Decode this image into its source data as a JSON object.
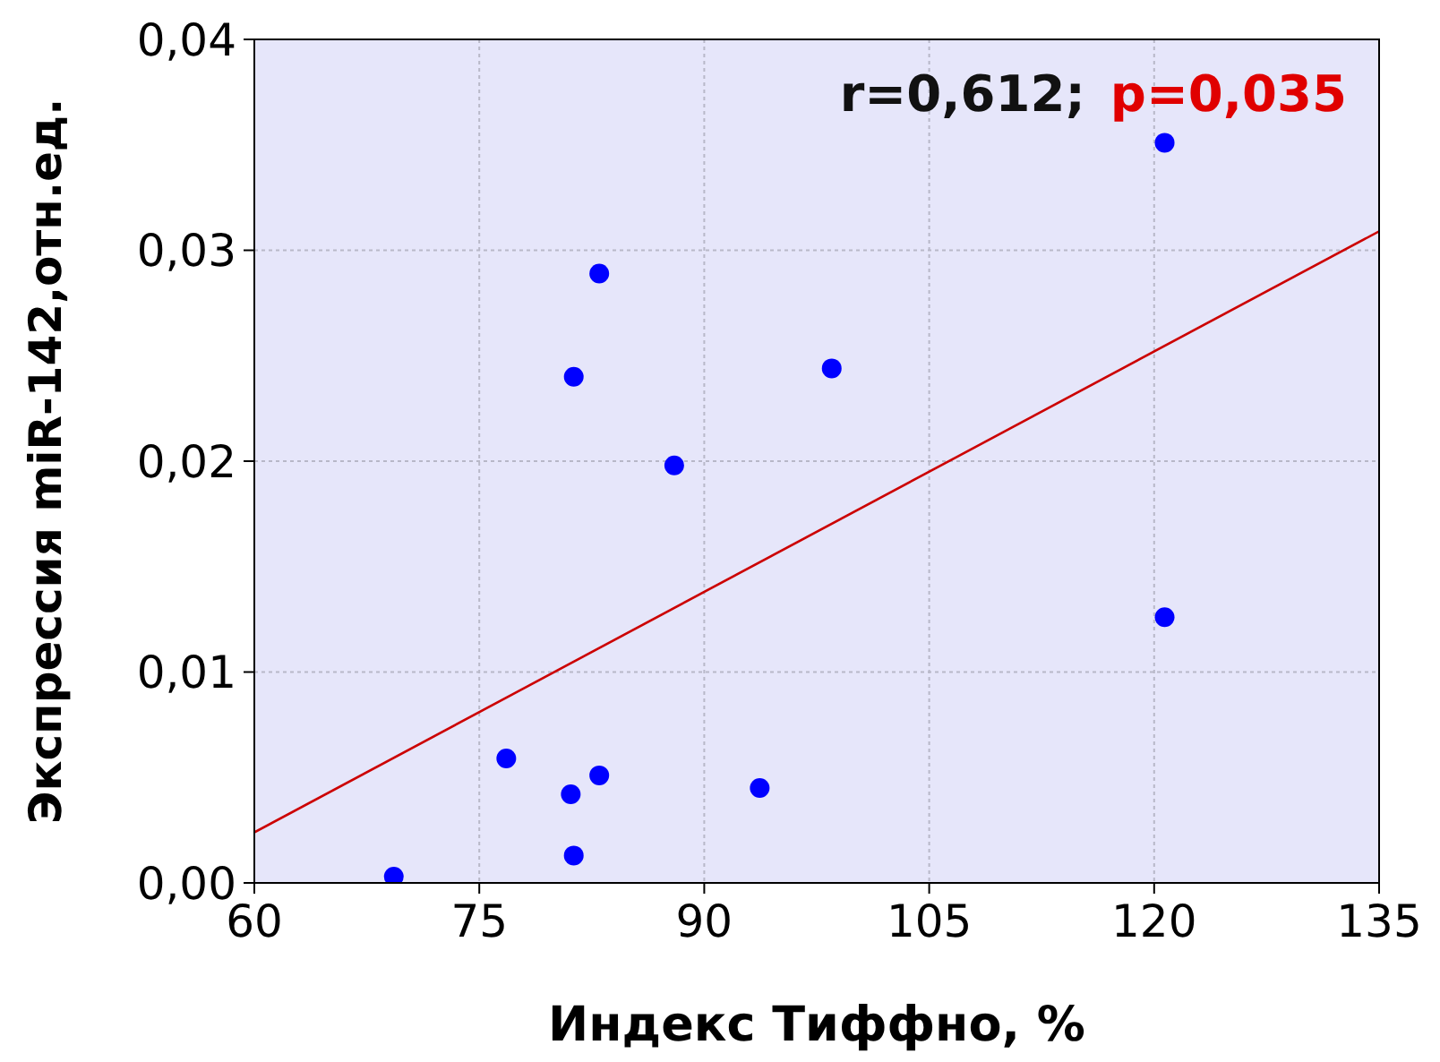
{
  "chart_data": {
    "type": "scatter",
    "xlabel": "Индекс Тиффно, %",
    "ylabel": "Экспрессия miR-142,отн.ед.",
    "annotations": [
      "r=0,612;",
      "p=0,035"
    ],
    "xlim": [
      60,
      135
    ],
    "xticks": [
      60,
      75,
      90,
      105,
      120,
      135
    ],
    "ylim": [
      0,
      0.04
    ],
    "yticks": [
      {
        "value": 0,
        "label": "0,00"
      },
      {
        "value": 0.01,
        "label": "0,01"
      },
      {
        "value": 0.02,
        "label": "0,02"
      },
      {
        "value": 0.03,
        "label": "0,03"
      },
      {
        "value": 0.04,
        "label": "0,04"
      }
    ],
    "grid": true,
    "series": [
      {
        "color": "#0000ff",
        "marker": "circle",
        "x": [
          69.3,
          76.8,
          81.1,
          81.3,
          81.3,
          83.0,
          83.0,
          88.0,
          93.7,
          98.5,
          120.7,
          120.7
        ],
        "values": [
          0.0003,
          0.0059,
          0.0042,
          0.0013,
          0.024,
          0.0051,
          0.0289,
          0.0198,
          0.0045,
          0.0244,
          0.0351,
          0.0126
        ]
      },
      {
        "type": "line",
        "color": "#cc0000",
        "line_style": "solid",
        "marker": "none",
        "x": [
          60,
          135
        ],
        "values": [
          0.0024,
          0.0309
        ]
      }
    ]
  }
}
